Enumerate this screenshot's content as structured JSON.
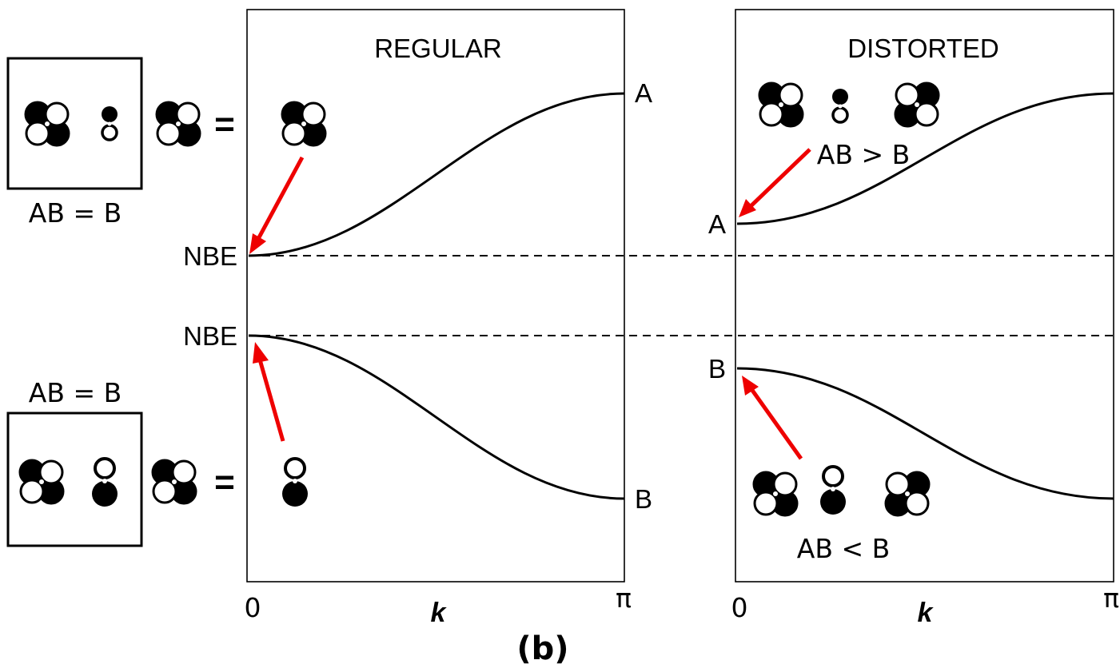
{
  "panels": {
    "regular": {
      "title": "REGULAR",
      "k_start": "0",
      "k_end": "π",
      "k_label": "k",
      "top_end_label": "A",
      "bottom_end_label": "B",
      "nbe_upper": "NBE",
      "nbe_lower": "NBE"
    },
    "distorted": {
      "title": "DISTORTED",
      "k_start": "0",
      "k_end": "π",
      "k_label": "k",
      "upper_start_label": "A",
      "lower_start_label": "B",
      "upper_relation": "AB > B",
      "lower_relation": "AB < B"
    }
  },
  "side": {
    "upper_relation": "AB = B",
    "upper_equals": "=",
    "lower_relation": "AB = B",
    "lower_equals": "="
  },
  "caption": "(b)",
  "colors": {
    "arrow": "#ee0000",
    "lines": "#000000",
    "background": "#ffffff"
  },
  "icons": [
    "d-orbital-icon",
    "p-orbital-icon"
  ]
}
